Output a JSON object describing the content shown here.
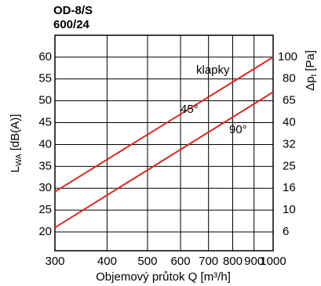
{
  "chart_data": {
    "type": "line",
    "title": [
      "OD-8/S",
      "600/24"
    ],
    "ylabel": {
      "main": "L",
      "sub": "WA",
      "unit": "[dB(A)]"
    },
    "y2label": {
      "main": "Δp",
      "sub": "t",
      "unit": "[Pa]"
    },
    "xlabel": "Objemový průtok Q [m³/h]",
    "xscale": "log",
    "xlim": [
      300,
      1000
    ],
    "xticks": [
      300,
      400,
      500,
      600,
      700,
      800,
      900,
      1000
    ],
    "ylim": [
      15.7,
      65
    ],
    "yticks": [
      20,
      25,
      30,
      35,
      40,
      45,
      50,
      55,
      60
    ],
    "y2ticks": [
      6,
      10,
      16,
      25,
      32,
      40,
      65,
      80,
      100
    ],
    "grid": true,
    "x": [
      300,
      1000
    ],
    "series": [
      {
        "name": "45°",
        "color": "#d42a22",
        "values": [
          29.2,
          60
        ]
      },
      {
        "name": "90°",
        "color": "#d42a22",
        "values": [
          21,
          52
        ]
      }
    ],
    "annotations": [
      "klapky"
    ]
  }
}
